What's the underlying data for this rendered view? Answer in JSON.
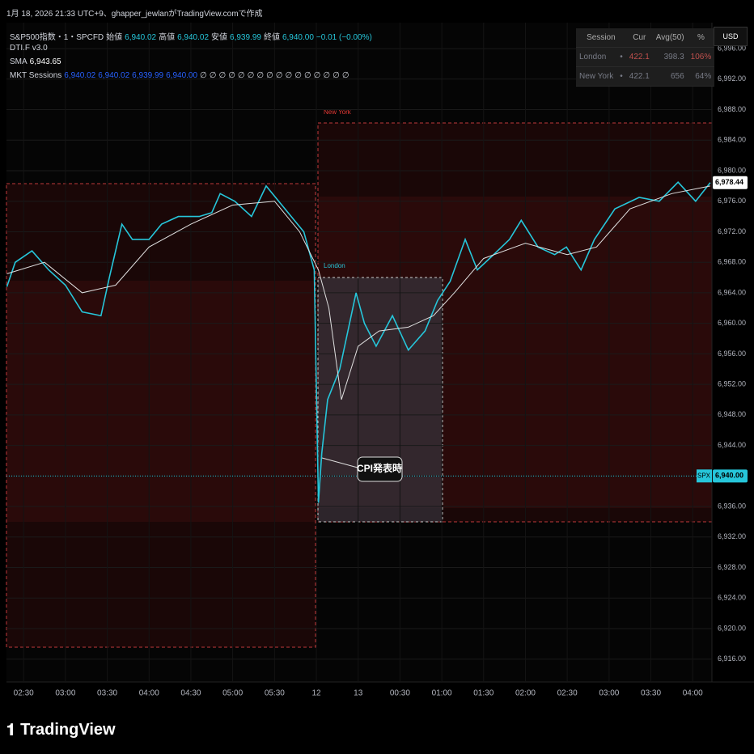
{
  "header": {
    "caption": "1月 18, 2026 21:33 UTC+9、ghapper_jewlanがTradingView.comで作成"
  },
  "legend": {
    "symbol": "S&P500指数・1・SPCFD",
    "open_label": "始値",
    "open": "6,940.02",
    "high_label": "高値",
    "high": "6,940.02",
    "low_label": "安値",
    "low": "6,939.99",
    "close_label": "終値",
    "close": "6,940.00",
    "change": "−0.01 (−0.00%)",
    "indicator": "DTI.F v3.0",
    "sma_value": "6,943.65",
    "sessions_name": "MKT Sessions",
    "sessions_values": [
      "6,940.02",
      "6,940.02",
      "6,939.99",
      "6,940.00"
    ],
    "sessions_empty": [
      "∅",
      "∅",
      "∅",
      "∅",
      "∅",
      "∅",
      "∅",
      "∅",
      "∅",
      "∅",
      "∅",
      "∅",
      "∅",
      "∅",
      "∅",
      "∅"
    ]
  },
  "table": {
    "header": [
      "Session",
      "Cur",
      "Avg(50)",
      "%"
    ],
    "rows": [
      [
        "London",
        "•",
        "422.1",
        "398.3",
        "106%"
      ],
      [
        "New York",
        "•",
        "422.1",
        "656",
        "64%"
      ]
    ]
  },
  "currency": "USD",
  "session_labels": [
    "New York",
    "London"
  ],
  "callout": "CPI発表時",
  "footer": {
    "logo": "TradingView"
  },
  "chart_data": {
    "type": "line",
    "x": [
      -0.4,
      -0.2,
      0.2,
      0.6,
      1.0,
      1.4,
      1.85,
      2.05,
      2.35,
      2.6,
      3.0,
      3.3,
      3.7,
      4.2,
      4.5,
      4.7,
      5.05,
      5.45,
      5.8,
      6.1,
      6.4,
      6.7,
      6.95,
      7.05,
      7.13,
      7.27,
      7.56,
      7.95,
      8.15,
      8.43,
      8.82,
      9.2,
      9.6,
      9.9,
      10.2,
      10.56,
      10.85,
      11.24,
      11.62,
      11.9,
      12.3,
      12.7,
      12.98,
      13.33,
      13.65,
      14.14,
      14.72,
      15.2,
      15.65,
      16.07,
      16.42
    ],
    "series": [
      {
        "color": "#26c6da",
        "values": [
          6964.8,
          6968,
          6969.5,
          6967,
          6965,
          6961.5,
          6961,
          6966,
          6973,
          6971,
          6971,
          6973,
          6974,
          6974,
          6974.5,
          6977,
          6976,
          6974,
          6978,
          6976,
          6974,
          6972,
          6967,
          6936.5,
          6943,
          6950,
          6954,
          6964,
          6960,
          6957,
          6961,
          6956.5,
          6959,
          6963,
          6965.5,
          6971,
          6967,
          6969,
          6971,
          6973.5,
          6970,
          6969,
          6970,
          6967,
          6971,
          6975,
          6976.5,
          6976,
          6978.5,
          6976,
          6978.44
        ]
      },
      {
        "name": "SMA",
        "color": "#e0e0e0",
        "x": [
          -0.4,
          0.5,
          1.4,
          2.2,
          3.0,
          4.0,
          5.0,
          6.0,
          6.6,
          7.05,
          7.3,
          7.6,
          8.0,
          8.5,
          9.2,
          9.8,
          10.3,
          11.0,
          12.0,
          13.0,
          13.7,
          14.5,
          15.5,
          16.42
        ],
        "values": [
          6966.5,
          6968,
          6964,
          6965,
          6970,
          6973,
          6975.5,
          6976,
          6972,
          6967,
          6962,
          6950,
          6957,
          6959,
          6959.5,
          6961,
          6964,
          6968.5,
          6970.5,
          6969,
          6970,
          6975,
          6977,
          6978
        ]
      }
    ],
    "xlim": [
      -0.41,
      16.46
    ],
    "xticks": [
      {
        "value": 0,
        "label": "02:30"
      },
      {
        "value": 1,
        "label": "03:00"
      },
      {
        "value": 2,
        "label": "03:30"
      },
      {
        "value": 3,
        "label": "04:00"
      },
      {
        "value": 4,
        "label": "04:30"
      },
      {
        "value": 5,
        "label": "05:00"
      },
      {
        "value": 6,
        "label": "05:30"
      },
      {
        "value": 7,
        "label": "12"
      },
      {
        "value": 8,
        "label": "13"
      },
      {
        "value": 9,
        "label": "00:30"
      },
      {
        "value": 10,
        "label": "01:00"
      },
      {
        "value": 11,
        "label": "01:30"
      },
      {
        "value": 12,
        "label": "02:00"
      },
      {
        "value": 13,
        "label": "02:30"
      },
      {
        "value": 14,
        "label": "03:00"
      },
      {
        "value": 15,
        "label": "03:30"
      },
      {
        "value": 16,
        "label": "04:00"
      }
    ],
    "ylim": [
      6913.0,
      6999.4
    ],
    "yticks": [
      {
        "value": 6996,
        "label": "6,996.00"
      },
      {
        "value": 6992,
        "label": "6,992.00"
      },
      {
        "value": 6988,
        "label": "6,988.00"
      },
      {
        "value": 6984,
        "label": "6,984.00"
      },
      {
        "value": 6980,
        "label": "6,980.00"
      },
      {
        "value": 6976,
        "label": "6,976.00"
      },
      {
        "value": 6972,
        "label": "6,972.00"
      },
      {
        "value": 6968,
        "label": "6,968.00"
      },
      {
        "value": 6964,
        "label": "6,964.00"
      },
      {
        "value": 6960,
        "label": "6,960.00"
      },
      {
        "value": 6956,
        "label": "6,956.00"
      },
      {
        "value": 6952,
        "label": "6,952.00"
      },
      {
        "value": 6948,
        "label": "6,948.00"
      },
      {
        "value": 6944,
        "label": "6,944.00"
      },
      {
        "value": 6940,
        "label": "6,940.00"
      },
      {
        "value": 6936,
        "label": "6,936.00"
      },
      {
        "value": 6932,
        "label": "6,932.00"
      },
      {
        "value": 6928,
        "label": "6,928.00"
      },
      {
        "value": 6924,
        "label": "6,924.00"
      },
      {
        "value": 6920,
        "label": "6,920.00"
      },
      {
        "value": 6916,
        "label": "6,916.00"
      }
    ],
    "grid": true,
    "price_labels": [
      {
        "value": 6978.44,
        "label": "6,978.44",
        "color": "#ffffff"
      },
      {
        "value": 6940,
        "label": "6,940.00",
        "tag": "SPX",
        "color": "#26c6da"
      }
    ]
  }
}
